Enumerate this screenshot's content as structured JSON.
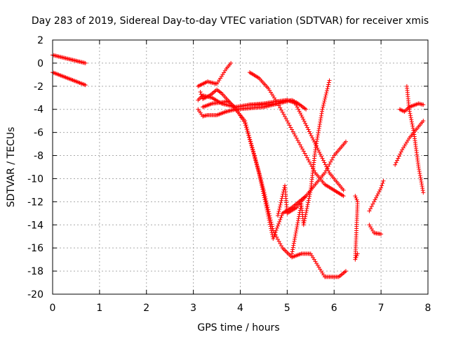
{
  "chart_data": {
    "type": "scatter",
    "title": "Day 283 of 2019, Sidereal Day-to-day VTEC variation (SDTVAR) for receiver xmis",
    "xlabel": "GPS time / hours",
    "ylabel": "SDTVAR / TECUs",
    "xlim": [
      0,
      8
    ],
    "ylim": [
      -20,
      2
    ],
    "xticks": [
      0,
      1,
      2,
      3,
      4,
      5,
      6,
      7,
      8
    ],
    "yticks": [
      2,
      0,
      -2,
      -4,
      -6,
      -8,
      -10,
      -12,
      -14,
      -16,
      -18,
      -20
    ],
    "grid": true,
    "marker": "+",
    "marker_color": "#ff0000",
    "series": [
      {
        "x": [
          0.0,
          0.7
        ],
        "y": [
          0.7,
          0.0
        ]
      },
      {
        "x": [
          0.0,
          0.7
        ],
        "y": [
          -0.8,
          -1.9
        ]
      },
      {
        "x": [
          3.1,
          3.3,
          3.5,
          3.7,
          3.8
        ],
        "y": [
          -2.0,
          -1.6,
          -1.8,
          -0.5,
          0.0
        ]
      },
      {
        "x": [
          3.1,
          3.2,
          3.4,
          3.6,
          3.9,
          4.2,
          4.5,
          4.8,
          5.0,
          5.2
        ],
        "y": [
          -3.2,
          -2.8,
          -3.0,
          -3.5,
          -3.8,
          -3.6,
          -3.5,
          -3.3,
          -3.2,
          -3.5
        ]
      },
      {
        "x": [
          3.15,
          3.2,
          3.35,
          3.5,
          3.6,
          3.8,
          4.1,
          4.4,
          4.7,
          4.9,
          5.1,
          5.4
        ],
        "y": [
          -2.5,
          -3.1,
          -2.8,
          -2.3,
          -2.6,
          -3.5,
          -5.0,
          -9.5,
          -15.2,
          -13.0,
          -12.5,
          -11.5
        ]
      },
      {
        "x": [
          3.1,
          3.2,
          3.3,
          3.5,
          3.7,
          3.9,
          4.2,
          4.5,
          4.8,
          5.0,
          5.1,
          5.15,
          5.3,
          5.6,
          5.9,
          6.2
        ],
        "y": [
          -4.0,
          -4.6,
          -4.5,
          -4.5,
          -4.2,
          -4.0,
          -3.9,
          -3.8,
          -3.5,
          -3.3,
          -3.2,
          -3.3,
          -4.5,
          -7.0,
          -9.5,
          -11.0
        ]
      },
      {
        "x": [
          3.2,
          3.4,
          3.6,
          3.75,
          3.9,
          4.1,
          4.3,
          4.5,
          4.7,
          4.9,
          5.1,
          5.3,
          5.5,
          5.8,
          6.1,
          6.25
        ],
        "y": [
          -3.8,
          -3.5,
          -3.4,
          -3.3,
          -3.9,
          -5.2,
          -8.0,
          -11.0,
          -14.5,
          -16.0,
          -16.8,
          -16.5,
          -16.5,
          -18.5,
          -18.5,
          -18.0
        ]
      },
      {
        "x": [
          4.2,
          4.4,
          4.6,
          4.8,
          5.0,
          5.2,
          5.4,
          5.6,
          5.8,
          6.0,
          6.2
        ],
        "y": [
          -0.8,
          -1.3,
          -2.2,
          -3.5,
          -5.0,
          -6.5,
          -8.0,
          -9.5,
          -10.5,
          -11.0,
          -11.5
        ]
      },
      {
        "x": [
          4.2,
          4.5,
          4.8,
          5.0,
          5.2,
          5.4
        ],
        "y": [
          -3.6,
          -3.6,
          -3.5,
          -3.2,
          -3.4,
          -4.0
        ]
      },
      {
        "x": [
          4.8,
          4.95,
          5.0,
          5.2,
          5.4,
          5.6,
          5.8,
          6.0,
          6.25
        ],
        "y": [
          -13.2,
          -10.6,
          -13.0,
          -12.5,
          -11.5,
          -10.5,
          -9.5,
          -8.0,
          -6.8
        ]
      },
      {
        "x": [
          5.1,
          5.3,
          5.35,
          5.5,
          5.6,
          5.75,
          5.9
        ],
        "y": [
          -16.5,
          -12.2,
          -14.0,
          -11.0,
          -7.5,
          -4.0,
          -1.5
        ]
      },
      {
        "x": [
          6.45,
          6.5,
          6.45,
          6.5
        ],
        "y": [
          -11.5,
          -12.0,
          -17.0,
          -16.5
        ]
      },
      {
        "x": [
          6.75,
          6.85,
          7.0,
          7.05
        ],
        "y": [
          -12.8,
          -12.0,
          -10.8,
          -10.2
        ]
      },
      {
        "x": [
          6.75,
          6.85,
          7.0
        ],
        "y": [
          -14.0,
          -14.7,
          -14.8
        ]
      },
      {
        "x": [
          7.3,
          7.45,
          7.6,
          7.8,
          7.9
        ],
        "y": [
          -8.8,
          -7.5,
          -6.5,
          -5.5,
          -5.0
        ]
      },
      {
        "x": [
          7.4,
          7.5,
          7.6,
          7.8,
          7.9
        ],
        "y": [
          -4.0,
          -4.2,
          -3.8,
          -3.5,
          -3.6
        ]
      },
      {
        "x": [
          7.55,
          7.6,
          7.7,
          7.8,
          7.9
        ],
        "y": [
          -2.0,
          -4.0,
          -6.0,
          -9.0,
          -11.2
        ]
      }
    ]
  }
}
